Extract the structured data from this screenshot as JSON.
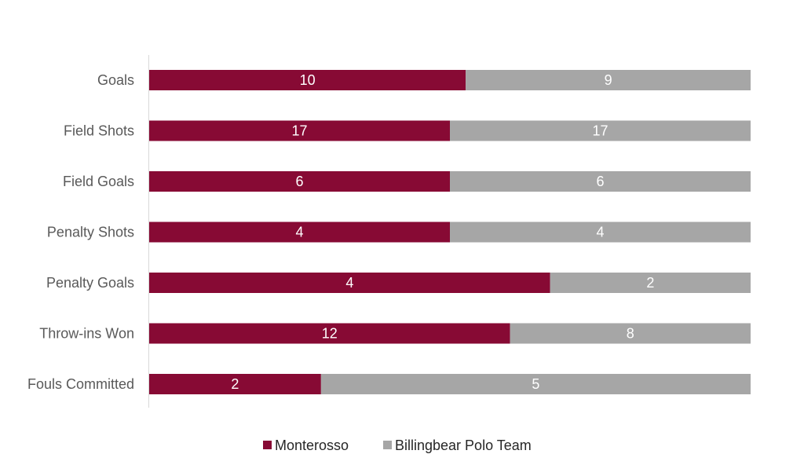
{
  "chart_data": {
    "type": "bar",
    "orientation": "horizontal",
    "stacked": "percent",
    "categories": [
      "Goals",
      "Field Shots",
      "Field Goals",
      "Penalty Shots",
      "Penalty Goals",
      "Throw-ins Won",
      "Fouls Committed"
    ],
    "series": [
      {
        "name": "Monterosso",
        "color": "#870A34",
        "values": [
          10,
          17,
          6,
          4,
          4,
          12,
          2
        ]
      },
      {
        "name": "Billingbear Polo Team",
        "color": "#A6A6A6",
        "values": [
          9,
          17,
          6,
          4,
          2,
          8,
          5
        ]
      }
    ],
    "legend_position": "bottom",
    "grid": false
  }
}
